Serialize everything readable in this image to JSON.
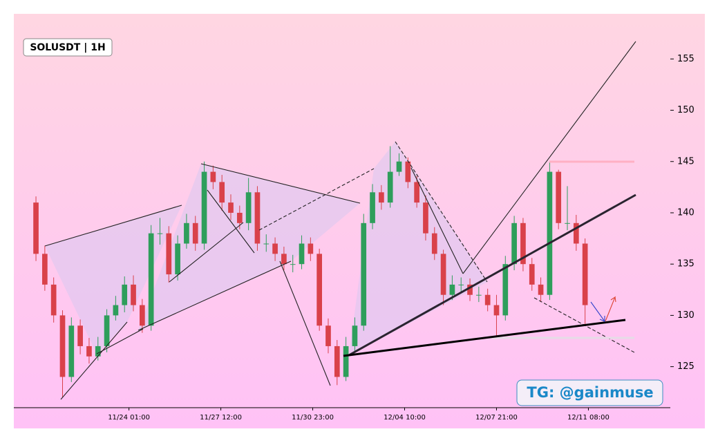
{
  "chart_data": {
    "type": "candlestick",
    "title": "SOLUSDT | 1H",
    "annotation": "TG: @gainmuse",
    "x": [
      "11/20 13:00",
      "11/20 21:00",
      "11/21 05:00",
      "11/21 13:00",
      "11/21 21:00",
      "11/22 05:00",
      "11/22 13:00",
      "11/22 21:00",
      "11/23 05:00",
      "11/23 13:00",
      "11/23 21:00",
      "11/24 05:00",
      "11/24 13:00",
      "11/24 21:00",
      "11/25 05:00",
      "11/25 13:00",
      "11/25 21:00",
      "11/26 05:00",
      "11/26 13:00",
      "11/26 21:00",
      "11/27 05:00",
      "11/27 13:00",
      "11/27 21:00",
      "11/28 05:00",
      "11/28 13:00",
      "11/28 21:00",
      "11/29 05:00",
      "11/29 13:00",
      "11/29 21:00",
      "11/30 05:00",
      "11/30 13:00",
      "11/30 21:00",
      "12/01 05:00",
      "12/01 13:00",
      "12/01 21:00",
      "12/02 05:00",
      "12/02 13:00",
      "12/02 21:00",
      "12/03 05:00",
      "12/03 13:00",
      "12/03 21:00",
      "12/04 05:00",
      "12/04 13:00",
      "12/04 21:00",
      "12/05 05:00",
      "12/05 13:00",
      "12/05 21:00",
      "12/06 05:00",
      "12/06 13:00",
      "12/06 21:00",
      "12/07 05:00",
      "12/07 13:00",
      "12/07 21:00",
      "12/08 05:00",
      "12/08 13:00",
      "12/08 21:00",
      "12/09 05:00",
      "12/09 13:00",
      "12/09 21:00",
      "12/10 05:00",
      "12/10 13:00",
      "12/10 21:00",
      "12/11 05:00"
    ],
    "open": [
      141,
      136,
      133,
      130,
      124,
      129,
      127,
      126,
      127,
      130,
      131,
      133,
      131,
      129,
      138,
      138,
      134,
      137,
      139,
      137,
      144,
      143,
      141,
      140,
      139,
      142,
      137,
      137,
      136,
      135,
      135,
      137,
      136,
      129,
      127,
      124,
      127,
      129,
      139,
      142,
      141,
      144,
      145,
      143,
      141,
      138,
      136,
      132,
      133,
      133,
      132,
      132,
      131,
      130,
      135,
      139,
      135,
      133,
      132,
      144,
      139,
      139,
      137
    ],
    "high": [
      141.6,
      136.8,
      133.7,
      130.5,
      129.8,
      129.6,
      127.8,
      127.9,
      130.6,
      131.9,
      133.8,
      133.9,
      131.6,
      138.8,
      139.5,
      138.7,
      137.8,
      139.9,
      139.7,
      145,
      144.6,
      143.7,
      141.8,
      140.7,
      143.4,
      142.6,
      137.9,
      137.6,
      136.7,
      135.9,
      137.8,
      137.6,
      136.5,
      129.7,
      127.6,
      127.9,
      129.8,
      139.9,
      142.8,
      142.7,
      146.5,
      145.8,
      145.4,
      143.6,
      141.7,
      138.6,
      136.4,
      133.9,
      133.7,
      133.6,
      132.8,
      132.6,
      132,
      135.8,
      139.7,
      139.5,
      135.6,
      133.7,
      145,
      144.2,
      142.6,
      139.8,
      137.5
    ],
    "low": [
      135.3,
      132.4,
      129.3,
      122,
      123.5,
      126.2,
      125.3,
      125.6,
      126.4,
      129.5,
      130.3,
      130.4,
      128.3,
      128.5,
      136.9,
      133.2,
      133.4,
      136.5,
      136.3,
      136.4,
      142.3,
      140.2,
      139.3,
      138.4,
      138.3,
      136.3,
      136.2,
      135.3,
      134.4,
      134.2,
      134.5,
      135.3,
      128.5,
      126.3,
      123.2,
      123.6,
      126.4,
      128.5,
      138.4,
      140.3,
      140.5,
      143.6,
      142.4,
      140.5,
      137.3,
      135.4,
      131,
      131.5,
      132.3,
      131.4,
      131.3,
      130.4,
      127.8,
      129.5,
      134.4,
      134.3,
      132.4,
      131.3,
      131.5,
      138.4,
      138.3,
      136.3,
      129
    ],
    "close": [
      136,
      133,
      130,
      124,
      129,
      127,
      126,
      127,
      130,
      131,
      133,
      131,
      129,
      138,
      138,
      134,
      137,
      139,
      137,
      144,
      143,
      141,
      140,
      139,
      142,
      137,
      137,
      136,
      135,
      135,
      137,
      136,
      129,
      127,
      124,
      127,
      129,
      139,
      142,
      141,
      144,
      145,
      143,
      141,
      138,
      136,
      132,
      133,
      133,
      132,
      132,
      131,
      130,
      135,
      139,
      135,
      133,
      132,
      144,
      139,
      139,
      137,
      131
    ],
    "up_color": "#2e9e5b",
    "down_color": "#d9414a",
    "xlim": [
      "11/19 17:00",
      "12/14 10:00"
    ],
    "xticks": [
      "11/24 01:00",
      "11/27 12:00",
      "11/30 23:00",
      "12/04 10:00",
      "12/07 21:00",
      "12/11 08:00"
    ],
    "ylim": [
      121,
      159.4
    ],
    "yticks": [
      125,
      130,
      135,
      140,
      145,
      150,
      155
    ],
    "grid": false
  }
}
